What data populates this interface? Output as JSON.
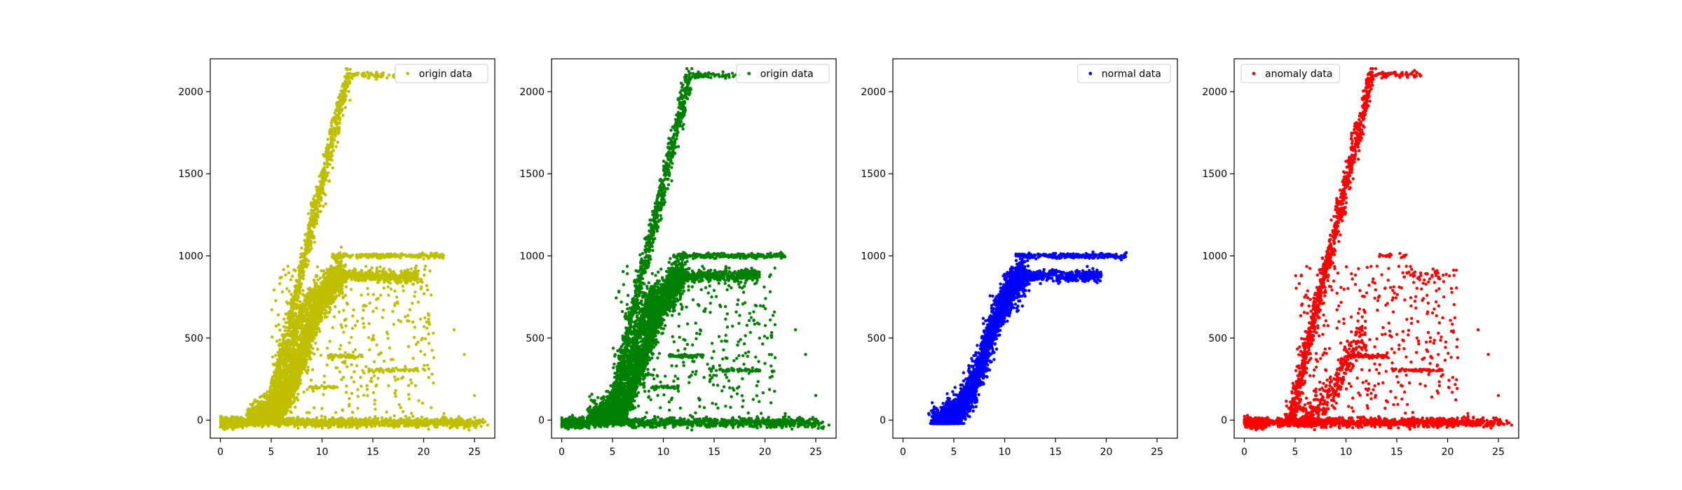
{
  "chart_data": [
    {
      "type": "scatter",
      "title": "",
      "xlabel": "",
      "ylabel": "",
      "xlim": [
        -1,
        27
      ],
      "ylim": [
        -110,
        2200
      ],
      "xticks": [
        0,
        5,
        10,
        15,
        20,
        25
      ],
      "yticks": [
        0,
        500,
        1000,
        1500,
        2000
      ],
      "grid": false,
      "legend": {
        "placement": "upper-right",
        "entries": [
          {
            "label": "origin data",
            "color": "#bfbf00"
          }
        ]
      },
      "series": [
        {
          "name": "origin data",
          "color": "#bfbf00",
          "clusters": [
            "baseline",
            "curve_main",
            "curve_upper",
            "plateau_1000",
            "plateau_880",
            "curve_steep",
            "plateau_2100",
            "scatter_mid",
            "line_300",
            "line_390",
            "line_200",
            "outliers"
          ]
        }
      ]
    },
    {
      "type": "scatter",
      "title": "",
      "xlabel": "",
      "ylabel": "",
      "xlim": [
        -1,
        27
      ],
      "ylim": [
        -110,
        2200
      ],
      "xticks": [
        0,
        5,
        10,
        15,
        20,
        25
      ],
      "yticks": [
        0,
        500,
        1000,
        1500,
        2000
      ],
      "grid": false,
      "legend": {
        "placement": "upper-right",
        "entries": [
          {
            "label": "origin data",
            "color": "#008000"
          }
        ]
      },
      "series": [
        {
          "name": "origin data",
          "color": "#008000",
          "clusters": [
            "baseline",
            "curve_main",
            "curve_upper",
            "plateau_1000",
            "plateau_880",
            "curve_steep",
            "plateau_2100",
            "scatter_mid",
            "line_300",
            "line_390",
            "line_200",
            "outliers"
          ]
        }
      ]
    },
    {
      "type": "scatter",
      "title": "",
      "xlabel": "",
      "ylabel": "",
      "xlim": [
        -1,
        27
      ],
      "ylim": [
        -110,
        2200
      ],
      "xticks": [
        0,
        5,
        10,
        15,
        20,
        25
      ],
      "yticks": [
        0,
        500,
        1000,
        1500,
        2000
      ],
      "grid": false,
      "legend": {
        "placement": "upper-right",
        "entries": [
          {
            "label": "normal data",
            "color": "#0000ff"
          }
        ]
      },
      "series": [
        {
          "name": "normal data",
          "color": "#0000ff",
          "clusters": [
            "curve_main",
            "plateau_1000",
            "plateau_880"
          ]
        }
      ]
    },
    {
      "type": "scatter",
      "title": "",
      "xlabel": "",
      "ylabel": "",
      "xlim": [
        -1,
        27
      ],
      "ylim": [
        -110,
        2200
      ],
      "xticks": [
        0,
        5,
        10,
        15,
        20,
        25
      ],
      "yticks": [
        0,
        500,
        1000,
        1500,
        2000
      ],
      "grid": false,
      "legend": {
        "placement": "upper-left",
        "entries": [
          {
            "label": "anomaly data",
            "color": "#ff0000"
          }
        ]
      },
      "series": [
        {
          "name": "anomaly data",
          "color": "#ff0000",
          "clusters": [
            "baseline",
            "curve_steep",
            "plateau_2100",
            "scatter_mid",
            "curve_low",
            "line_300",
            "line_390",
            "plateau_1000_sparse",
            "plateau_880_sparse",
            "outliers"
          ]
        }
      ]
    }
  ]
}
